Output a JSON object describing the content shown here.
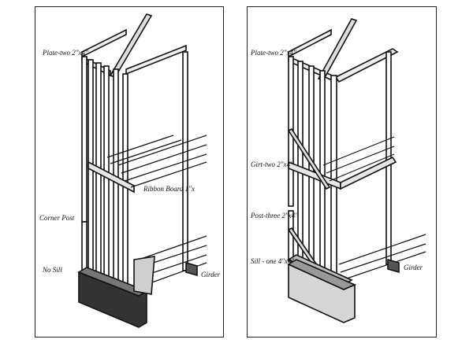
{
  "figure": {
    "left_panel": {
      "labels": {
        "plate": "Plate-two 2\"x4\"",
        "ribbon": "Ribbon Board 1\"x",
        "corner_post": "Corner Post",
        "no_sill": "No Sill",
        "girder": "Girder"
      }
    },
    "right_panel": {
      "labels": {
        "plate": "Plate-two 2\"x4\"",
        "girt": "Girt-two 2\"x4\"",
        "post": "Post-three 2\"x4\"",
        "sill": "Sill - one 4\"x4\"",
        "girder": "Girder"
      }
    }
  }
}
